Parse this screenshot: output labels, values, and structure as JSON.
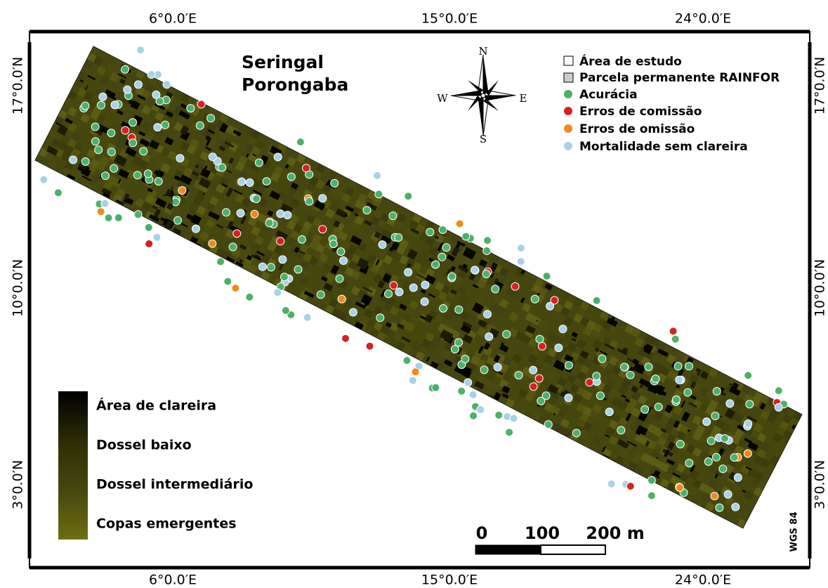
{
  "map": {
    "title": [
      "Seringal",
      "Porongaba"
    ],
    "longitude_labels": [
      "6°0.0′E",
      "15°0.0′E",
      "24°0.0′E"
    ],
    "latitude_labels": [
      "17°0.0′N",
      "10°0.0′N",
      "3°0.0′N"
    ],
    "compass": {
      "n": "N",
      "s": "S",
      "e": "E",
      "w": "W"
    },
    "legend": [
      "Área de estudo",
      "Parcela permanente RAINFOR",
      "Acurácia",
      "Erros de comissão",
      "Erros de omissão",
      "Mortalidade sem clareira"
    ],
    "canopy_legend": [
      "Área de clareira",
      "Dossel baixo",
      "Dossel intermediário",
      "Copas emergentes"
    ],
    "scale_bar": [
      "0",
      "100",
      "200 m"
    ],
    "datum": "WGS 84"
  }
}
